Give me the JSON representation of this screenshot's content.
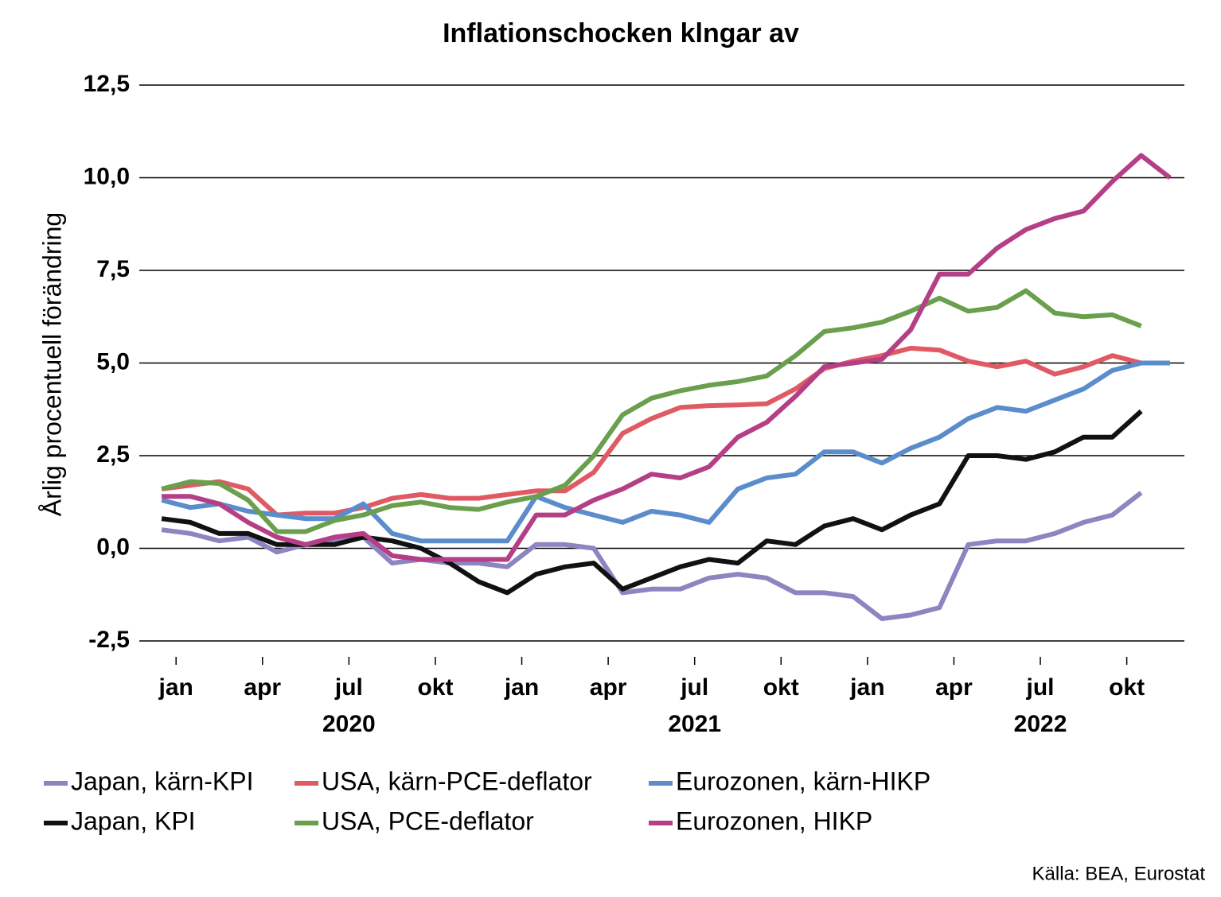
{
  "chart_data": {
    "type": "line",
    "title": "Inflationschocken klngar av",
    "y_label": "Årlig procentuell förändring",
    "source": "Källa: BEA, Eurostat",
    "categories": [
      "jan",
      null,
      null,
      "apr",
      null,
      null,
      "jul",
      null,
      null,
      "okt",
      null,
      null,
      "jan",
      null,
      null,
      "apr",
      null,
      null,
      "jul",
      null,
      null,
      "okt",
      null,
      null,
      "jan",
      null,
      null,
      "apr",
      null,
      null,
      "jul",
      null,
      null,
      "okt",
      null,
      null
    ],
    "years": [
      "2020",
      "2021",
      "2022"
    ],
    "ylim": [
      -2.5,
      12.5
    ],
    "yticks": [
      {
        "value": -2.5,
        "label": "-2,5"
      },
      {
        "value": 0,
        "label": "0,0"
      },
      {
        "value": 2.5,
        "label": "2,5"
      },
      {
        "value": 5,
        "label": "5,0"
      },
      {
        "value": 7.5,
        "label": "7,5"
      },
      {
        "value": 10,
        "label": "10,0"
      },
      {
        "value": 12.5,
        "label": "12,5"
      }
    ],
    "grid": true,
    "series": [
      {
        "name": "Japan, kärn-KPI",
        "color": "#8b86c0",
        "values": [
          0.5,
          0.4,
          0.2,
          0.3,
          -0.1,
          0.1,
          0.2,
          0.3,
          -0.4,
          -0.3,
          -0.4,
          -0.4,
          -0.5,
          0.1,
          0.1,
          0.0,
          -1.2,
          -1.1,
          -1.1,
          -0.8,
          -0.7,
          -0.8,
          -1.2,
          -1.2,
          -1.3,
          -1.9,
          -1.8,
          -1.6,
          0.1,
          0.2,
          0.2,
          0.4,
          0.7,
          0.9,
          1.5,
          null
        ]
      },
      {
        "name": "USA, kärn-PCE-deflator",
        "color": "#e05a63",
        "values": [
          1.6,
          1.7,
          1.8,
          1.6,
          0.9,
          0.95,
          0.95,
          1.1,
          1.35,
          1.45,
          1.35,
          1.35,
          1.45,
          1.55,
          1.55,
          2.05,
          3.1,
          3.5,
          3.8,
          3.85,
          3.87,
          3.9,
          4.3,
          4.85,
          5.05,
          5.2,
          5.4,
          5.35,
          5.05,
          4.9,
          5.05,
          4.7,
          4.9,
          5.2,
          5.0,
          null
        ]
      },
      {
        "name": "Eurozonen, kärn-HIKP",
        "color": "#5b8ccc",
        "values": [
          1.3,
          1.1,
          1.2,
          1.0,
          0.9,
          0.8,
          0.8,
          1.2,
          0.4,
          0.2,
          0.2,
          0.2,
          0.2,
          1.4,
          1.1,
          0.9,
          0.7,
          1.0,
          0.9,
          0.7,
          1.6,
          1.9,
          2.0,
          2.6,
          2.6,
          2.3,
          2.7,
          3.0,
          3.5,
          3.8,
          3.7,
          4.0,
          4.3,
          4.8,
          5.0,
          5.0
        ]
      },
      {
        "name": "Japan, KPI",
        "color": "#111111",
        "values": [
          0.8,
          0.7,
          0.4,
          0.4,
          0.1,
          0.1,
          0.1,
          0.3,
          0.2,
          0.0,
          -0.4,
          -0.9,
          -1.2,
          -0.7,
          -0.5,
          -0.4,
          -1.1,
          -0.8,
          -0.5,
          -0.3,
          -0.4,
          0.2,
          0.1,
          0.6,
          0.8,
          0.5,
          0.9,
          1.2,
          2.5,
          2.5,
          2.4,
          2.6,
          3.0,
          3.0,
          3.7,
          null
        ]
      },
      {
        "name": "USA, PCE-deflator",
        "color": "#6a9f4e",
        "values": [
          1.6,
          1.8,
          1.75,
          1.3,
          0.45,
          0.45,
          0.75,
          0.9,
          1.15,
          1.25,
          1.1,
          1.05,
          1.25,
          1.4,
          1.7,
          2.5,
          3.6,
          4.05,
          4.25,
          4.4,
          4.5,
          4.65,
          5.2,
          5.85,
          5.95,
          6.1,
          6.4,
          6.75,
          6.4,
          6.5,
          6.95,
          6.35,
          6.25,
          6.3,
          6.0,
          null
        ]
      },
      {
        "name": "Eurozonen, HIKP",
        "color": "#b53f86",
        "values": [
          1.4,
          1.4,
          1.2,
          0.7,
          0.3,
          0.1,
          0.3,
          0.4,
          -0.2,
          -0.3,
          -0.3,
          -0.3,
          -0.3,
          0.9,
          0.9,
          1.3,
          1.6,
          2.0,
          1.9,
          2.2,
          3.0,
          3.4,
          4.1,
          4.9,
          5.0,
          5.1,
          5.9,
          7.4,
          7.4,
          8.1,
          8.6,
          8.9,
          9.1,
          9.9,
          10.6,
          10.0
        ]
      }
    ]
  }
}
